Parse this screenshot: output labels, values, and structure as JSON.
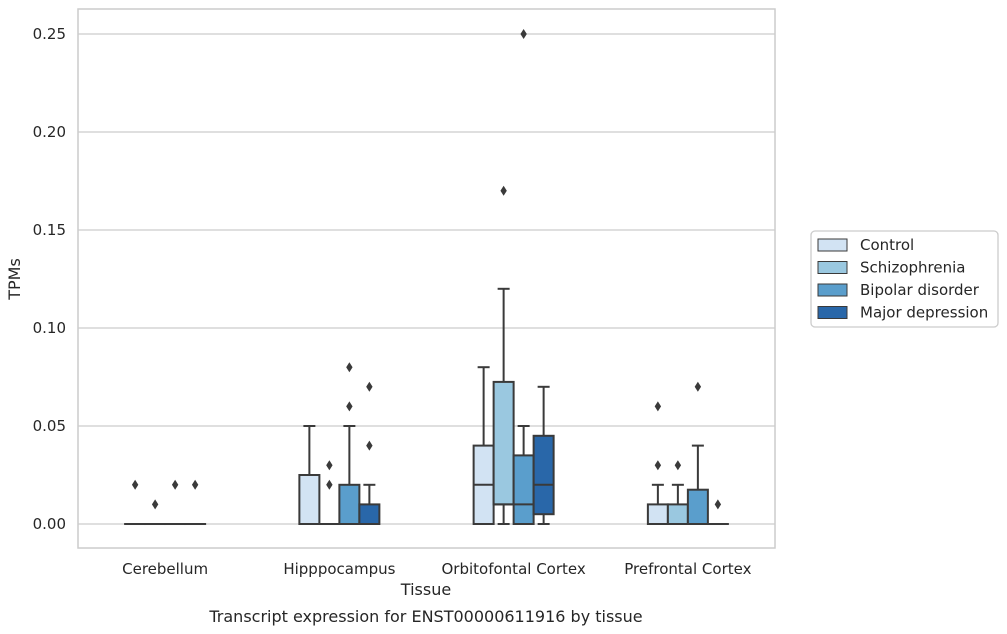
{
  "chart_data": {
    "type": "box",
    "caption": "Transcript expression for ENST00000611916 by tissue",
    "xlabel": "Tissue",
    "ylabel": "TPMs",
    "ylim": [
      -0.012,
      0.263
    ],
    "yticks": [
      0.0,
      0.05,
      0.1,
      0.15,
      0.2,
      0.25
    ],
    "ytick_labels": [
      "0.00",
      "0.05",
      "0.10",
      "0.15",
      "0.20",
      "0.25"
    ],
    "grid": true,
    "categories": [
      "Cerebellum",
      "Hipppocampus",
      "Orbitofontal Cortex",
      "Prefrontal Cortex"
    ],
    "legend_position": "right",
    "series": [
      {
        "name": "Control",
        "color": "#d2e3f3",
        "boxes": [
          {
            "q1": 0,
            "median": 0,
            "q3": 0,
            "whisker_low": 0,
            "whisker_high": 0,
            "outliers": [
              0.02
            ]
          },
          {
            "q1": 0,
            "median": 0,
            "q3": 0.025,
            "whisker_low": 0,
            "whisker_high": 0.05,
            "outliers": []
          },
          {
            "q1": 0,
            "median": 0.02,
            "q3": 0.04,
            "whisker_low": 0,
            "whisker_high": 0.08,
            "outliers": []
          },
          {
            "q1": 0,
            "median": 0,
            "q3": 0.01,
            "whisker_low": 0,
            "whisker_high": 0.02,
            "outliers": [
              0.03,
              0.06
            ]
          }
        ]
      },
      {
        "name": "Schizophrenia",
        "color": "#9ac8e0",
        "boxes": [
          {
            "q1": 0,
            "median": 0,
            "q3": 0,
            "whisker_low": 0,
            "whisker_high": 0,
            "outliers": [
              0.01
            ]
          },
          {
            "q1": 0,
            "median": 0,
            "q3": 0,
            "whisker_low": 0,
            "whisker_high": 0,
            "outliers": [
              0.02,
              0.03
            ]
          },
          {
            "q1": 0.01,
            "median": 0.01,
            "q3": 0.0725,
            "whisker_low": 0,
            "whisker_high": 0.12,
            "outliers": [
              0.17
            ]
          },
          {
            "q1": 0,
            "median": 0,
            "q3": 0.01,
            "whisker_low": 0,
            "whisker_high": 0.02,
            "outliers": [
              0.03
            ]
          }
        ]
      },
      {
        "name": "Bipolar disorder",
        "color": "#5a9ecc",
        "boxes": [
          {
            "q1": 0,
            "median": 0,
            "q3": 0,
            "whisker_low": 0,
            "whisker_high": 0,
            "outliers": [
              0.02
            ]
          },
          {
            "q1": 0,
            "median": 0,
            "q3": 0.02,
            "whisker_low": 0,
            "whisker_high": 0.05,
            "outliers": [
              0.06,
              0.08
            ]
          },
          {
            "q1": 0,
            "median": 0.01,
            "q3": 0.035,
            "whisker_low": 0,
            "whisker_high": 0.05,
            "outliers": [
              0.25
            ]
          },
          {
            "q1": 0,
            "median": 0,
            "q3": 0.0175,
            "whisker_low": 0,
            "whisker_high": 0.04,
            "outliers": [
              0.07
            ]
          }
        ]
      },
      {
        "name": "Major depression",
        "color": "#2967a9",
        "boxes": [
          {
            "q1": 0,
            "median": 0,
            "q3": 0,
            "whisker_low": 0,
            "whisker_high": 0,
            "outliers": [
              0.02
            ]
          },
          {
            "q1": 0,
            "median": 0,
            "q3": 0.01,
            "whisker_low": 0,
            "whisker_high": 0.02,
            "outliers": [
              0.04,
              0.07
            ]
          },
          {
            "q1": 0.005,
            "median": 0.02,
            "q3": 0.045,
            "whisker_low": 0,
            "whisker_high": 0.07,
            "outliers": []
          },
          {
            "q1": 0,
            "median": 0,
            "q3": 0,
            "whisker_low": 0,
            "whisker_high": 0,
            "outliers": [
              0.01
            ]
          }
        ]
      }
    ]
  }
}
